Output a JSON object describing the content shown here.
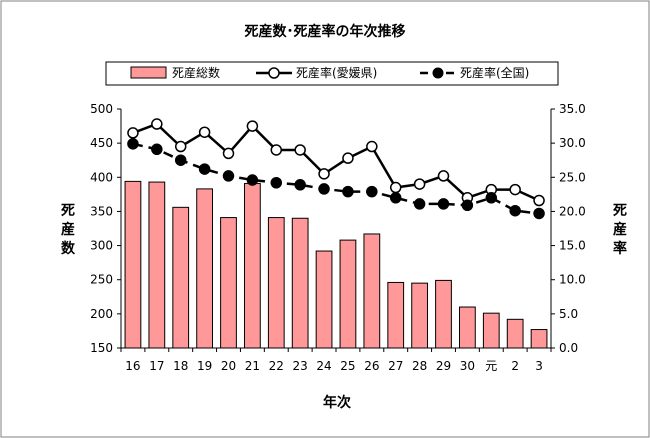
{
  "chart_data": {
    "type": "bar",
    "title": "死産数･死産率の年次推移",
    "xlabel": "年次",
    "ylabel": "死産数",
    "y2label": "死産率",
    "categories": [
      "16",
      "17",
      "18",
      "19",
      "20",
      "21",
      "22",
      "23",
      "24",
      "25",
      "26",
      "27",
      "28",
      "29",
      "30",
      "元",
      "2",
      "3"
    ],
    "ylim": [
      150,
      500
    ],
    "yticks": [
      "150",
      "200",
      "250",
      "300",
      "350",
      "400",
      "450",
      "500"
    ],
    "y2lim": [
      0,
      35
    ],
    "y2ticks": [
      "0.0",
      "5.0",
      "10.0",
      "15.0",
      "20.0",
      "25.0",
      "30.0",
      "35.0"
    ],
    "grid": false,
    "legend_position": "top",
    "series": [
      {
        "name": "死産総数",
        "type": "bar",
        "axis": "left",
        "color": "#ff9999",
        "values": [
          394,
          393,
          356,
          383,
          341,
          391,
          341,
          340,
          292,
          308,
          317,
          246,
          245,
          249,
          210,
          201,
          192,
          177
        ]
      },
      {
        "name": "死産率(愛媛県)",
        "type": "line",
        "axis": "right",
        "style": "solid",
        "marker": "open-circle",
        "values": [
          31.5,
          32.8,
          29.5,
          31.6,
          28.5,
          32.5,
          29.0,
          29.0,
          25.5,
          27.8,
          29.5,
          23.5,
          24.0,
          25.2,
          22.0,
          23.2,
          23.2,
          21.6
        ]
      },
      {
        "name": "死産率(全国)",
        "type": "line",
        "axis": "right",
        "style": "dashed",
        "marker": "filled-circle",
        "values": [
          29.9,
          29.1,
          27.5,
          26.2,
          25.2,
          24.6,
          24.2,
          23.9,
          23.3,
          22.9,
          22.9,
          22.0,
          21.1,
          21.1,
          20.9,
          22.0,
          20.1,
          19.7
        ]
      }
    ]
  }
}
